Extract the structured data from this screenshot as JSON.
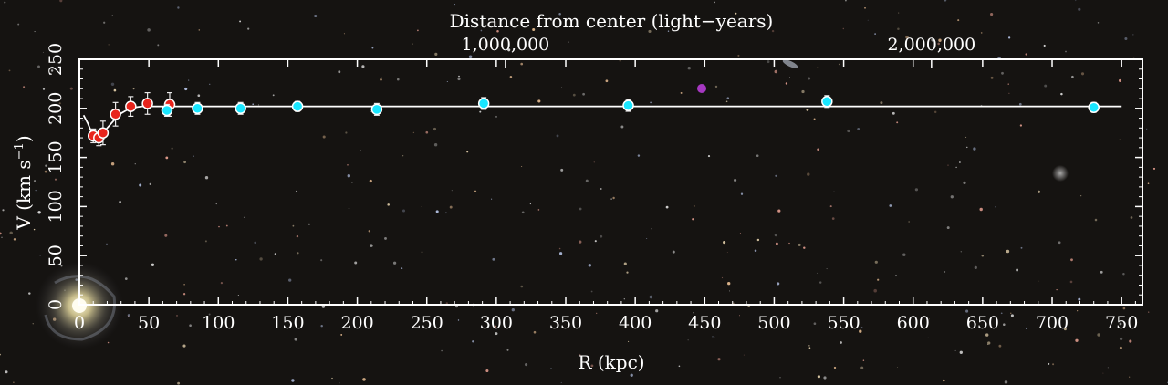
{
  "chart_data": {
    "type": "scatter",
    "title": "",
    "xlabel": "R (kpc)",
    "ylabel_main": "V (km s",
    "ylabel_sup": "−1",
    "ylabel_close": ")",
    "top_axis_label": "Distance from center (light−years)",
    "xlim": [
      0,
      765
    ],
    "ylim": [
      0,
      250
    ],
    "x_ticks": [
      0,
      50,
      100,
      150,
      200,
      250,
      300,
      350,
      400,
      450,
      500,
      550,
      600,
      650,
      700,
      750
    ],
    "y_ticks": [
      0,
      50,
      100,
      150,
      200,
      250
    ],
    "top_ticks": [
      {
        "value_kpc": 306.6,
        "label": "1,000,000"
      },
      {
        "value_kpc": 613.2,
        "label": "2,000,000"
      }
    ],
    "model_curve": {
      "x": [
        3,
        6,
        9,
        12,
        15,
        20,
        25,
        30,
        35,
        40,
        45,
        50,
        55,
        60,
        65,
        70,
        80,
        100,
        150,
        200,
        300,
        400,
        500,
        600,
        700,
        750
      ],
      "y": [
        193,
        185,
        175,
        170,
        172,
        180,
        188,
        195,
        199,
        201,
        202,
        202,
        202,
        202,
        202,
        202,
        202,
        202,
        202,
        202,
        202,
        202,
        202,
        202,
        202,
        202
      ]
    },
    "series": [
      {
        "color": "#e8241c",
        "points": [
          {
            "x": 10,
            "y": 172,
            "err": 7
          },
          {
            "x": 14,
            "y": 170,
            "err": 8
          },
          {
            "x": 17,
            "y": 175,
            "err": 12
          },
          {
            "x": 26,
            "y": 194,
            "err": 12
          },
          {
            "x": 37,
            "y": 202,
            "err": 10
          },
          {
            "x": 49,
            "y": 205,
            "err": 11
          },
          {
            "x": 65,
            "y": 204,
            "err": 12
          }
        ]
      },
      {
        "color": "#19e6ff",
        "points": [
          {
            "x": 63,
            "y": 198,
            "err": 6
          },
          {
            "x": 85,
            "y": 200,
            "err": 6
          },
          {
            "x": 116,
            "y": 200,
            "err": 6
          },
          {
            "x": 157,
            "y": 202,
            "err": 5
          },
          {
            "x": 214,
            "y": 199,
            "err": 6
          },
          {
            "x": 291,
            "y": 205,
            "err": 6
          },
          {
            "x": 395,
            "y": 203,
            "err": 6
          },
          {
            "x": 538,
            "y": 207,
            "err": 6
          },
          {
            "x": 730,
            "y": 201,
            "err": 5
          }
        ]
      }
    ]
  }
}
